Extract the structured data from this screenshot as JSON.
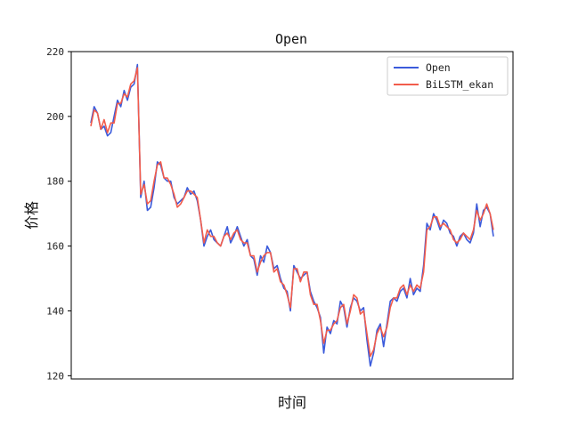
{
  "chart_data": {
    "type": "line",
    "title": "Open",
    "xlabel": "时间",
    "ylabel": "价格",
    "ylim": [
      119,
      220
    ],
    "yticks": [
      120,
      140,
      160,
      180,
      200,
      220
    ],
    "xticks": [],
    "grid": false,
    "legend_placement": "top-right",
    "series": [
      {
        "name": "Open",
        "color": "#3b5bdb",
        "values": [
          198,
          203,
          201,
          196,
          197,
          194,
          195,
          200,
          205,
          203,
          208,
          205,
          209,
          210,
          216,
          175,
          180,
          171,
          172,
          178,
          186,
          185,
          181,
          180,
          180,
          175,
          173,
          174,
          175,
          178,
          176,
          177,
          174,
          168,
          160,
          163,
          165,
          162,
          161,
          160,
          163,
          166,
          161,
          163,
          166,
          163,
          160,
          162,
          157,
          156,
          151,
          157,
          155,
          160,
          158,
          153,
          154,
          150,
          147,
          146,
          140,
          154,
          152,
          150,
          151,
          152,
          146,
          143,
          141,
          138,
          127,
          135,
          133,
          137,
          136,
          143,
          141,
          135,
          141,
          144,
          143,
          140,
          141,
          131,
          123,
          127,
          134,
          136,
          129,
          136,
          143,
          144,
          143,
          146,
          147,
          144,
          150,
          145,
          147,
          146,
          154,
          167,
          165,
          170,
          168,
          165,
          168,
          167,
          164,
          163,
          160,
          163,
          164,
          162,
          161,
          164,
          173,
          166,
          171,
          172,
          170,
          163
        ]
      },
      {
        "name": "BiLSTM_ekan",
        "color": "#f25c4b",
        "values": [
          197,
          202,
          201,
          196,
          199,
          195,
          198,
          198,
          204,
          204,
          207,
          206,
          210,
          211,
          215,
          176,
          179,
          173,
          174,
          180,
          185,
          186,
          181,
          181,
          179,
          176,
          172,
          173,
          175,
          177,
          177,
          176,
          175,
          168,
          161,
          165,
          163,
          163,
          161,
          160,
          163,
          164,
          162,
          164,
          165,
          162,
          161,
          161,
          157,
          157,
          152,
          155,
          157,
          158,
          158,
          152,
          153,
          149,
          148,
          145,
          141,
          153,
          153,
          149,
          152,
          152,
          145,
          142,
          142,
          137,
          130,
          134,
          134,
          136,
          137,
          141,
          142,
          136,
          140,
          145,
          144,
          139,
          140,
          133,
          126,
          128,
          133,
          135,
          132,
          135,
          141,
          144,
          144,
          147,
          148,
          145,
          148,
          146,
          148,
          147,
          152,
          165,
          166,
          169,
          169,
          166,
          167,
          166,
          165,
          162,
          161,
          162,
          164,
          163,
          162,
          165,
          171,
          168,
          170,
          173,
          170,
          165
        ]
      }
    ]
  }
}
